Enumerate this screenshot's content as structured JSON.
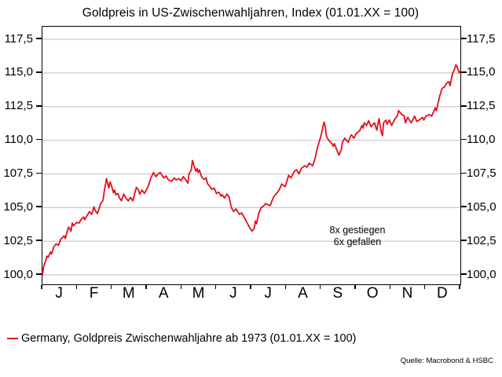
{
  "header": {
    "title": "Goldpreis in US-Zwischenwahljahren, Index (01.01.XX = 100)"
  },
  "annotation": {
    "line1": "8x gestiegen",
    "line2": "6x gefallen"
  },
  "legend": {
    "label": "Germany, Goldpreis Zwischenwahljahre ab 1973 (01.01.XX = 100)"
  },
  "source": {
    "text": "Quelle: Macrobond & HSBC"
  },
  "colors": {
    "line": "#e60d18",
    "grid": "#c8c8c8",
    "frame": "#000000"
  },
  "chart_data": {
    "type": "line",
    "title": "Goldpreis in US-Zwischenwahljahren, Index (01.01.XX = 100)",
    "xlabel": "",
    "ylabel": "Index (01.01.XX = 100)",
    "x_unit": "day_of_year",
    "xlim_days": [
      0,
      365
    ],
    "ylim": [
      100,
      117.5
    ],
    "grid": "horizontal",
    "legend_position": "bottom-left",
    "x_tick_labels": [
      "J",
      "F",
      "M",
      "A",
      "M",
      "J",
      "J",
      "A",
      "S",
      "O",
      "N",
      "D"
    ],
    "y_tick_values": [
      117.5,
      115.0,
      112.5,
      110.0,
      107.5,
      105.0,
      102.5,
      100.0
    ],
    "y_tick_labels": [
      "117,5",
      "115,0",
      "112,5",
      "110,0",
      "107,5",
      "105,0",
      "102,5",
      "100,0"
    ],
    "annotations": [
      "8x gestiegen",
      "6x gefallen"
    ],
    "series": [
      {
        "name": "Germany, Goldpreis Zwischenwahljahre ab 1973 (01.01.XX = 100)",
        "color": "#e60d18",
        "points": [
          [
            0,
            100.0
          ],
          [
            1,
            100.6
          ],
          [
            3,
            101.1
          ],
          [
            4,
            101.4
          ],
          [
            5,
            101.3
          ],
          [
            7,
            101.7
          ],
          [
            8,
            101.55
          ],
          [
            10,
            102.1
          ],
          [
            12,
            102.3
          ],
          [
            14,
            102.2
          ],
          [
            16,
            102.65
          ],
          [
            19,
            102.9
          ],
          [
            20,
            102.7
          ],
          [
            22,
            103.35
          ],
          [
            23,
            103.55
          ],
          [
            25,
            103.25
          ],
          [
            26,
            103.85
          ],
          [
            27,
            103.65
          ],
          [
            30,
            103.9
          ],
          [
            32,
            103.85
          ],
          [
            34,
            104.15
          ],
          [
            36,
            104.3
          ],
          [
            37,
            104.1
          ],
          [
            39,
            104.4
          ],
          [
            41,
            104.7
          ],
          [
            43,
            104.5
          ],
          [
            45,
            105.05
          ],
          [
            46,
            104.8
          ],
          [
            48,
            104.55
          ],
          [
            49,
            104.8
          ],
          [
            51,
            105.3
          ],
          [
            53,
            105.55
          ],
          [
            54,
            106.2
          ],
          [
            56,
            107.15
          ],
          [
            58,
            106.45
          ],
          [
            59,
            106.9
          ],
          [
            60,
            106.7
          ],
          [
            62,
            106.1
          ],
          [
            63,
            106.3
          ],
          [
            64,
            105.95
          ],
          [
            66,
            106.05
          ],
          [
            67,
            105.75
          ],
          [
            69,
            105.5
          ],
          [
            71,
            106.0
          ],
          [
            73,
            105.7
          ],
          [
            75,
            105.5
          ],
          [
            77,
            105.75
          ],
          [
            79,
            105.5
          ],
          [
            82,
            106.5
          ],
          [
            84,
            106.3
          ],
          [
            85,
            106.0
          ],
          [
            87,
            106.3
          ],
          [
            89,
            106.05
          ],
          [
            92,
            106.5
          ],
          [
            94,
            107.0
          ],
          [
            95,
            107.25
          ],
          [
            97,
            107.6
          ],
          [
            99,
            107.3
          ],
          [
            101,
            107.5
          ],
          [
            103,
            107.6
          ],
          [
            106,
            107.2
          ],
          [
            108,
            107.35
          ],
          [
            110,
            107.05
          ],
          [
            113,
            106.95
          ],
          [
            115,
            107.2
          ],
          [
            117,
            107.05
          ],
          [
            119,
            107.15
          ],
          [
            121,
            107.0
          ],
          [
            123,
            107.3
          ],
          [
            125,
            107.1
          ],
          [
            127,
            106.8
          ],
          [
            128,
            107.5
          ],
          [
            130,
            107.8
          ],
          [
            131,
            108.5
          ],
          [
            132,
            108.2
          ],
          [
            134,
            107.7
          ],
          [
            135,
            107.9
          ],
          [
            136,
            107.6
          ],
          [
            137,
            107.8
          ],
          [
            139,
            107.3
          ],
          [
            141,
            107.1
          ],
          [
            143,
            107.2
          ],
          [
            144,
            106.8
          ],
          [
            146,
            106.6
          ],
          [
            148,
            106.35
          ],
          [
            150,
            106.45
          ],
          [
            152,
            106.05
          ],
          [
            154,
            106.15
          ],
          [
            156,
            105.85
          ],
          [
            157,
            105.95
          ],
          [
            159,
            105.7
          ],
          [
            161,
            106.0
          ],
          [
            163,
            105.8
          ],
          [
            165,
            105.0
          ],
          [
            167,
            104.7
          ],
          [
            169,
            104.9
          ],
          [
            172,
            104.5
          ],
          [
            174,
            104.6
          ],
          [
            176,
            104.3
          ],
          [
            178,
            104.0
          ],
          [
            181,
            103.5
          ],
          [
            183,
            103.25
          ],
          [
            185,
            103.45
          ],
          [
            186,
            104.0
          ],
          [
            187,
            103.8
          ],
          [
            189,
            104.6
          ],
          [
            191,
            105.0
          ],
          [
            193,
            105.1
          ],
          [
            195,
            105.3
          ],
          [
            197,
            105.2
          ],
          [
            199,
            105.15
          ],
          [
            200,
            105.4
          ],
          [
            202,
            105.8
          ],
          [
            205,
            106.1
          ],
          [
            207,
            106.35
          ],
          [
            209,
            106.75
          ],
          [
            212,
            106.55
          ],
          [
            214,
            107.1
          ],
          [
            215,
            107.4
          ],
          [
            217,
            107.2
          ],
          [
            220,
            107.7
          ],
          [
            222,
            107.8
          ],
          [
            224,
            107.5
          ],
          [
            226,
            107.9
          ],
          [
            229,
            108.1
          ],
          [
            231,
            108.0
          ],
          [
            233,
            108.3
          ],
          [
            236,
            108.1
          ],
          [
            238,
            108.6
          ],
          [
            240,
            109.4
          ],
          [
            243,
            110.25
          ],
          [
            245,
            111.0
          ],
          [
            246,
            111.35
          ],
          [
            247,
            111.0
          ],
          [
            248,
            110.3
          ],
          [
            250,
            110.0
          ],
          [
            253,
            109.75
          ],
          [
            254,
            109.55
          ],
          [
            255,
            109.75
          ],
          [
            257,
            109.3
          ],
          [
            259,
            108.9
          ],
          [
            261,
            109.3
          ],
          [
            262,
            109.85
          ],
          [
            264,
            110.15
          ],
          [
            267,
            109.85
          ],
          [
            269,
            110.3
          ],
          [
            270,
            110.4
          ],
          [
            272,
            110.15
          ],
          [
            274,
            110.5
          ],
          [
            277,
            110.7
          ],
          [
            279,
            111.1
          ],
          [
            280,
            110.9
          ],
          [
            281,
            111.3
          ],
          [
            283,
            111.1
          ],
          [
            285,
            111.45
          ],
          [
            287,
            111.0
          ],
          [
            290,
            111.3
          ],
          [
            292,
            110.75
          ],
          [
            294,
            111.6
          ],
          [
            296,
            110.6
          ],
          [
            297,
            110.35
          ],
          [
            298,
            111.3
          ],
          [
            300,
            111.5
          ],
          [
            301,
            111.2
          ],
          [
            303,
            111.5
          ],
          [
            305,
            111.1
          ],
          [
            308,
            111.6
          ],
          [
            310,
            111.8
          ],
          [
            311,
            112.2
          ],
          [
            312,
            112.1
          ],
          [
            314,
            111.9
          ],
          [
            316,
            111.8
          ],
          [
            317,
            111.3
          ],
          [
            319,
            111.7
          ],
          [
            322,
            111.3
          ],
          [
            324,
            111.6
          ],
          [
            325,
            111.8
          ],
          [
            327,
            111.4
          ],
          [
            329,
            111.5
          ],
          [
            332,
            111.7
          ],
          [
            333,
            111.5
          ],
          [
            335,
            111.8
          ],
          [
            338,
            111.9
          ],
          [
            340,
            111.8
          ],
          [
            342,
            112.2
          ],
          [
            343,
            112.4
          ],
          [
            344,
            112.2
          ],
          [
            347,
            113.3
          ],
          [
            349,
            113.85
          ],
          [
            351,
            113.95
          ],
          [
            353,
            114.25
          ],
          [
            355,
            114.35
          ],
          [
            356,
            114.05
          ],
          [
            357,
            114.45
          ],
          [
            358,
            114.9
          ],
          [
            360,
            115.3
          ],
          [
            361,
            115.6
          ],
          [
            362,
            115.5
          ],
          [
            364,
            115.0
          ],
          [
            365,
            115.15
          ]
        ]
      }
    ]
  }
}
